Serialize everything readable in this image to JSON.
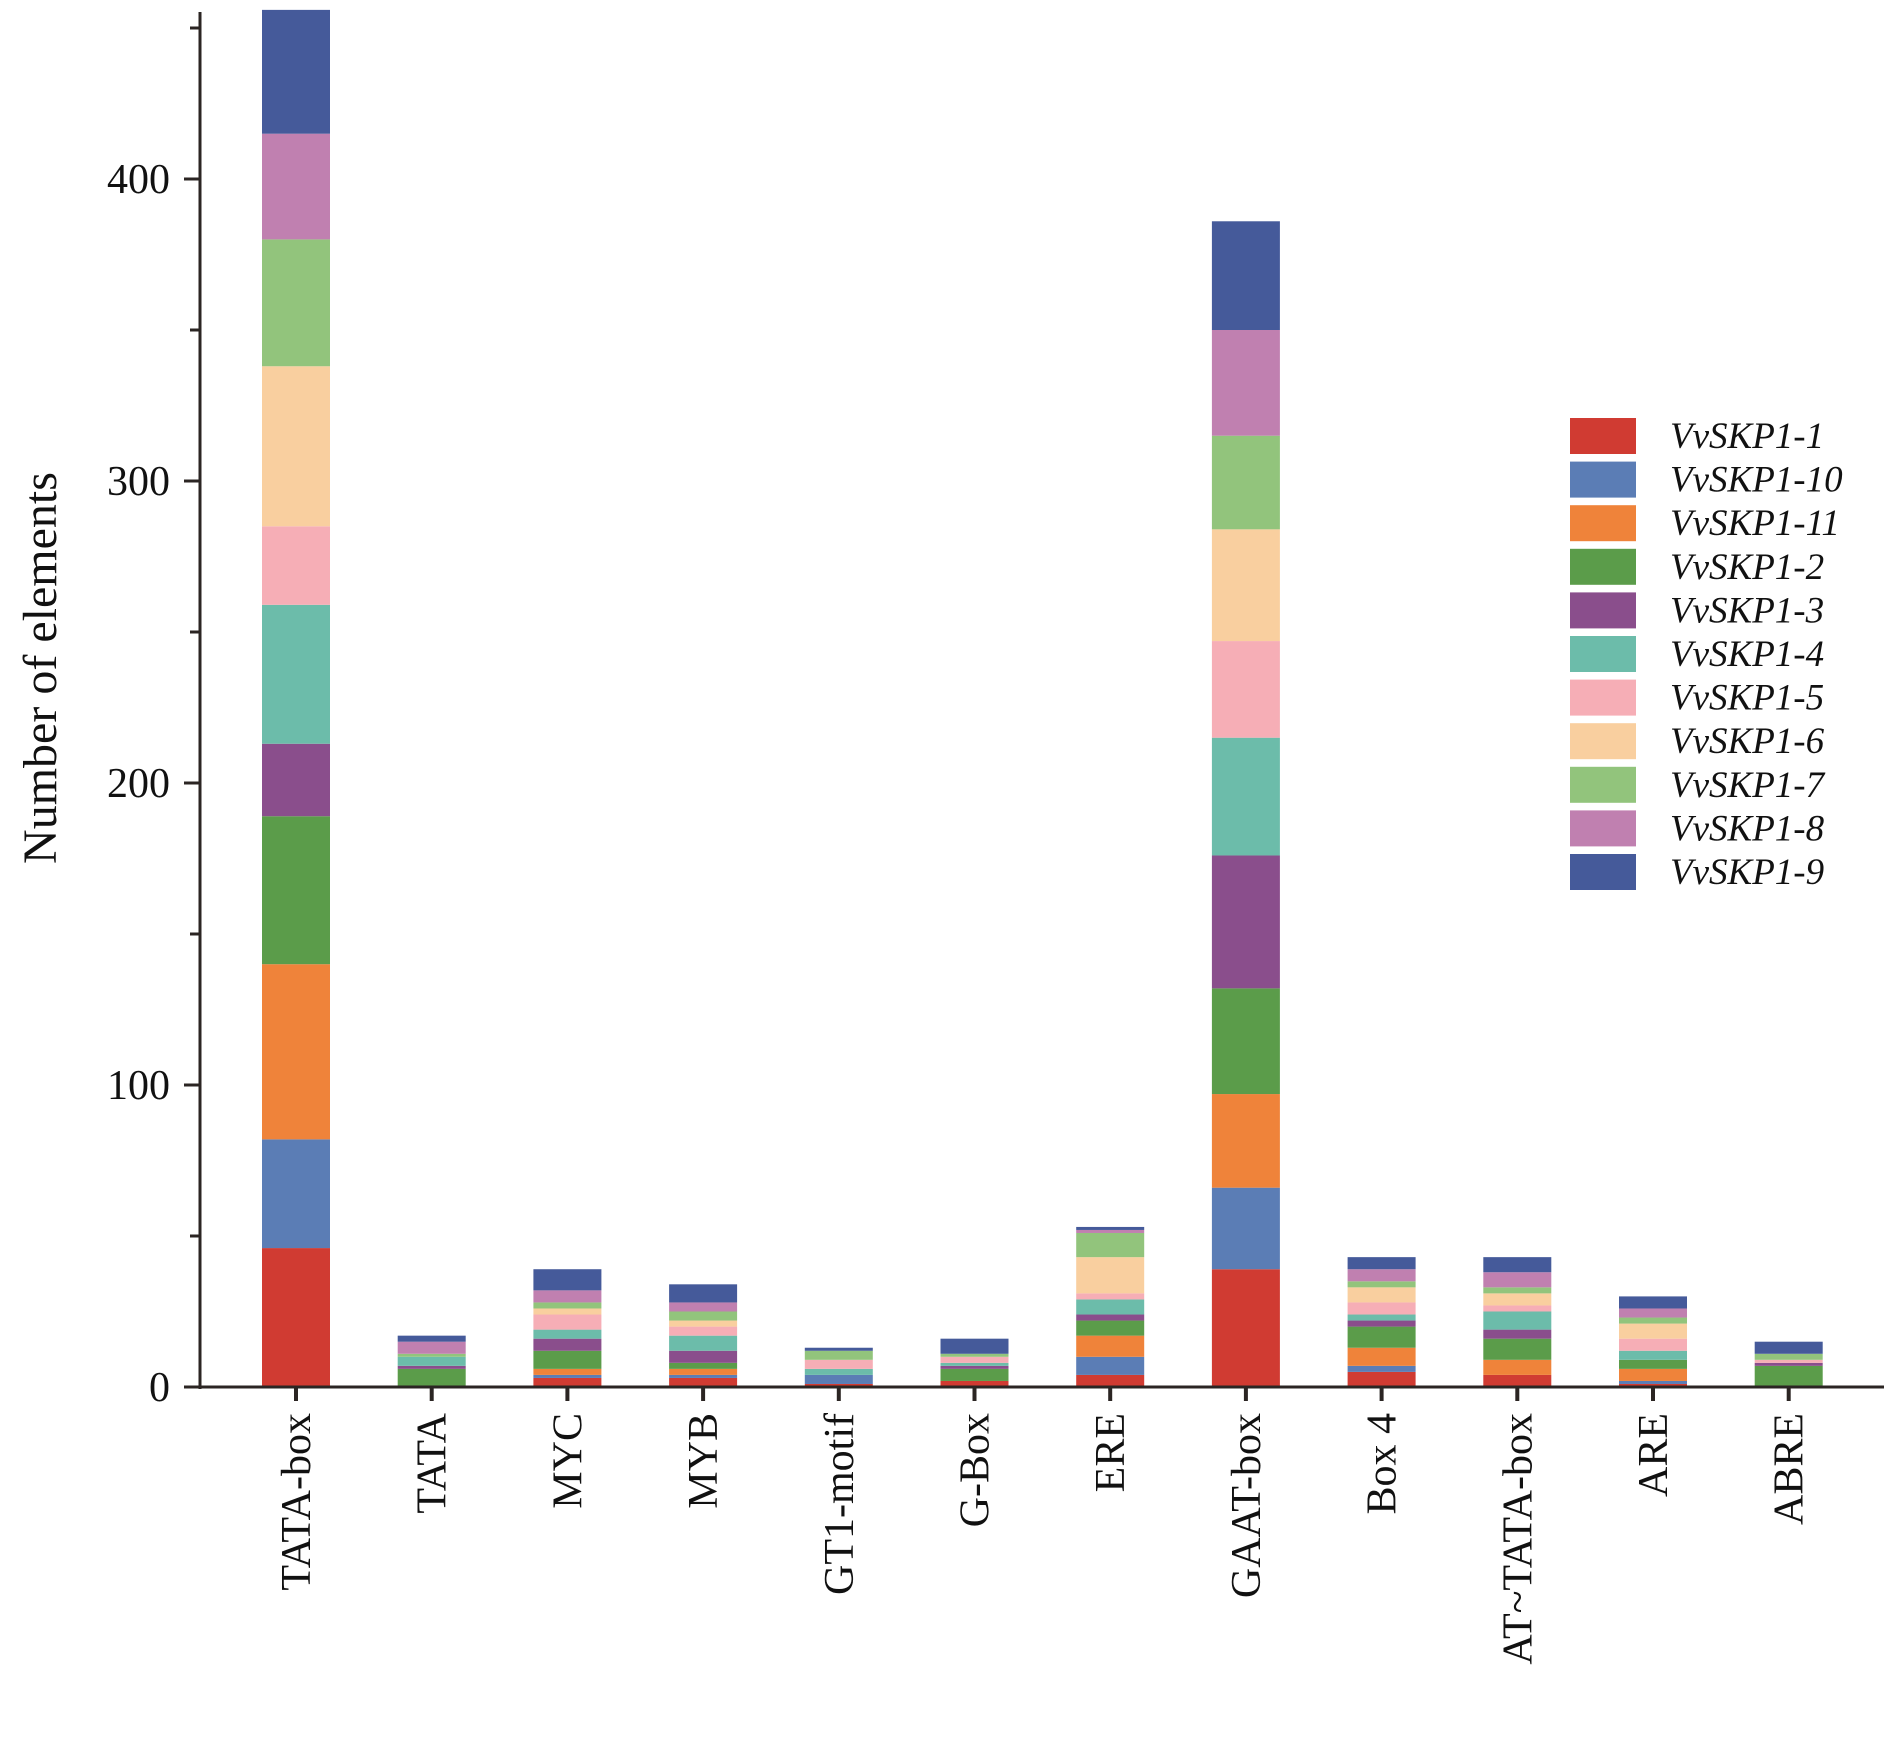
{
  "chart_data": {
    "type": "bar",
    "stacked": true,
    "title": "",
    "xlabel": "",
    "ylabel": "Number of elements",
    "ylim": [
      0,
      455
    ],
    "yticks": [
      0,
      100,
      200,
      300,
      400
    ],
    "grid": false,
    "legend_position": "right",
    "categories": [
      "TATA-box",
      "TATA",
      "MYC",
      "MYB",
      "GT1-motif",
      "G-Box",
      "ERE",
      "GAAT-box",
      "Box 4",
      "AT~TATA-box",
      "ARE",
      "ABRE"
    ],
    "series": [
      {
        "name": "VvSKP1-1",
        "color": "#d03b32",
        "values": [
          46,
          0,
          3,
          3,
          1,
          2,
          4,
          39,
          5,
          4,
          1,
          0
        ]
      },
      {
        "name": "VvSKP1-10",
        "color": "#5b7db5",
        "values": [
          36,
          0,
          1,
          1,
          3,
          0,
          6,
          27,
          2,
          0,
          1,
          0
        ]
      },
      {
        "name": "VvSKP1-11",
        "color": "#ef833a",
        "values": [
          58,
          0,
          2,
          2,
          0,
          0,
          7,
          31,
          6,
          5,
          4,
          0
        ]
      },
      {
        "name": "VvSKP1-2",
        "color": "#5b9c4a",
        "values": [
          49,
          6,
          6,
          2,
          0,
          4,
          5,
          35,
          7,
          7,
          3,
          7
        ]
      },
      {
        "name": "VvSKP1-3",
        "color": "#8a4e8c",
        "values": [
          24,
          1,
          4,
          4,
          0,
          1,
          2,
          44,
          2,
          3,
          0,
          1
        ]
      },
      {
        "name": "VvSKP1-4",
        "color": "#6cbcaa",
        "values": [
          46,
          3,
          3,
          5,
          2,
          1,
          5,
          39,
          2,
          6,
          3,
          0
        ]
      },
      {
        "name": "VvSKP1-5",
        "color": "#f6aeb6",
        "values": [
          26,
          0,
          5,
          3,
          3,
          2,
          2,
          32,
          4,
          2,
          4,
          1
        ]
      },
      {
        "name": "VvSKP1-6",
        "color": "#f9cf9f",
        "values": [
          53,
          0,
          2,
          2,
          0,
          0,
          12,
          37,
          5,
          4,
          5,
          0
        ]
      },
      {
        "name": "VvSKP1-7",
        "color": "#92c47c",
        "values": [
          42,
          1,
          2,
          3,
          3,
          1,
          8,
          31,
          2,
          2,
          2,
          2
        ]
      },
      {
        "name": "VvSKP1-8",
        "color": "#c080b0",
        "values": [
          35,
          4,
          4,
          3,
          0,
          0,
          1,
          35,
          4,
          5,
          3,
          0
        ]
      },
      {
        "name": "VvSKP1-9",
        "color": "#455a9a",
        "values": [
          41,
          2,
          7,
          6,
          1,
          5,
          1,
          36,
          4,
          5,
          4,
          4
        ]
      }
    ]
  }
}
